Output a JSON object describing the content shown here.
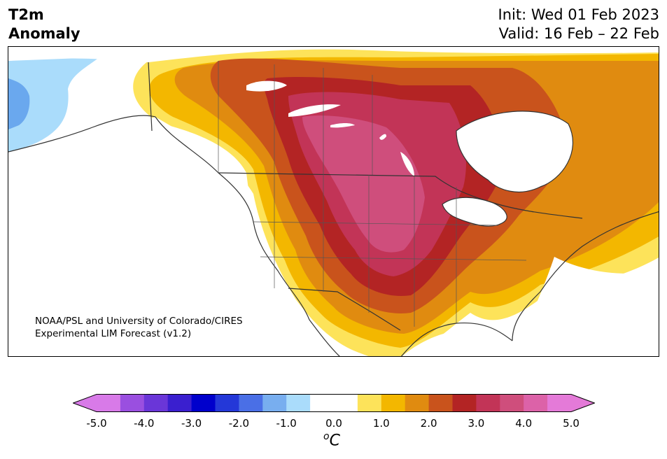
{
  "header": {
    "title_line1": "T2m",
    "title_line2": "Anomaly",
    "init_text": "Init: Wed 01 Feb 2023",
    "valid_text": "Valid: 16 Feb – 22 Feb"
  },
  "credit": {
    "line1": "NOAA/PSL and University of Colorado/CIRES",
    "line2": "Experimental LIM Forecast (v1.2)"
  },
  "colorbar": {
    "colors": [
      "#d87ae8",
      "#9a4fe0",
      "#6a36d8",
      "#3a1fcf",
      "#0000cc",
      "#2438d8",
      "#4a6fe6",
      "#78aeef",
      "#aadcfb",
      "#ffffff",
      "#ffffff",
      "#fde35a",
      "#f3b700",
      "#e08b10",
      "#c9531c",
      "#b32424",
      "#c23457",
      "#cf4e7c",
      "#dc62a8",
      "#e47ad8"
    ],
    "min_arrow_color": "#d87ae8",
    "max_arrow_color": "#e47ad8",
    "tick_labels": [
      "-5.0",
      "-4.0",
      "-3.0",
      "-2.0",
      "-1.0",
      "0.0",
      "1.0",
      "2.0",
      "3.0",
      "4.0",
      "5.0"
    ],
    "unit_base": "C",
    "unit_sup": "o"
  },
  "map": {
    "land_color": "#ffffff",
    "ocean_color": "#ffffff",
    "anomaly_levels": [
      {
        "anomaly_c": 1.0,
        "color": "#fde35a"
      },
      {
        "anomaly_c": 1.5,
        "color": "#f3b700"
      },
      {
        "anomaly_c": 2.0,
        "color": "#e08b10"
      },
      {
        "anomaly_c": 2.5,
        "color": "#c9531c"
      },
      {
        "anomaly_c": 3.0,
        "color": "#b32424"
      },
      {
        "anomaly_c": 3.5,
        "color": "#c23457"
      },
      {
        "anomaly_c": 4.0,
        "color": "#cf4e7c"
      }
    ],
    "cold_levels": [
      {
        "anomaly_c": -1.0,
        "color": "#aadcfb"
      },
      {
        "anomaly_c": -2.0,
        "color": "#6aa8ee"
      }
    ]
  }
}
